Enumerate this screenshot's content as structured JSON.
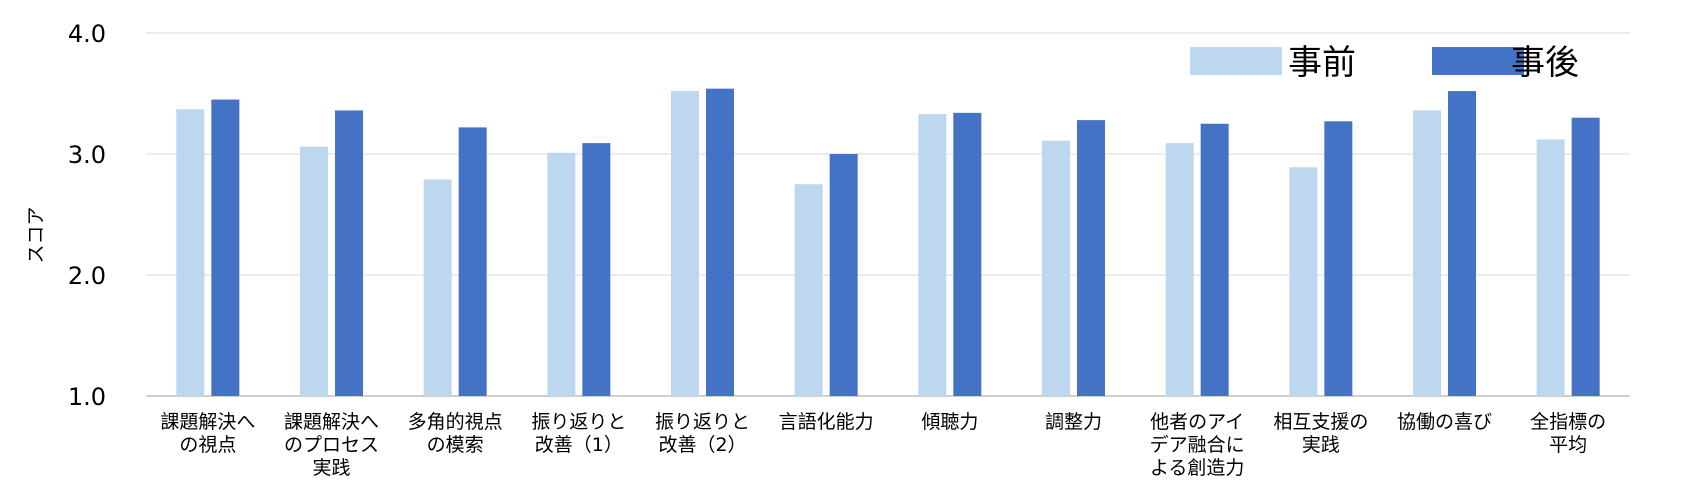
{
  "chart_data": {
    "type": "bar",
    "title": "",
    "xlabel": "",
    "ylabel": "スコア",
    "ylim": [
      1.0,
      4.0
    ],
    "yticks": [
      "1.0",
      "2.0",
      "3.0",
      "4.0"
    ],
    "grid": true,
    "legend_position": "top-right",
    "categories": [
      [
        "課題解決へ",
        "の視点"
      ],
      [
        "課題解決へ",
        "のプロセス",
        "実践"
      ],
      [
        "多角的視点",
        "の模索"
      ],
      [
        "振り返りと",
        "改善（1）"
      ],
      [
        "振り返りと",
        "改善（2）"
      ],
      [
        "言語化能力"
      ],
      [
        "傾聴力"
      ],
      [
        "調整力"
      ],
      [
        "他者のアイ",
        "デア融合に",
        "よる創造力"
      ],
      [
        "相互支援の",
        "実践"
      ],
      [
        "協働の喜び"
      ],
      [
        "全指標の",
        "平均"
      ]
    ],
    "series": [
      {
        "name": "事前",
        "color": "#bdd7ee",
        "values": [
          3.37,
          3.06,
          2.79,
          3.01,
          3.52,
          2.75,
          3.33,
          3.11,
          3.09,
          2.89,
          3.36,
          3.12
        ]
      },
      {
        "name": "事後",
        "color": "#4472c4",
        "values": [
          3.45,
          3.36,
          3.22,
          3.09,
          3.54,
          3.0,
          3.34,
          3.28,
          3.25,
          3.27,
          3.52,
          3.3
        ]
      }
    ]
  },
  "colors": {
    "grid": "#d9d9d9",
    "axis": "#bfbfbf"
  }
}
